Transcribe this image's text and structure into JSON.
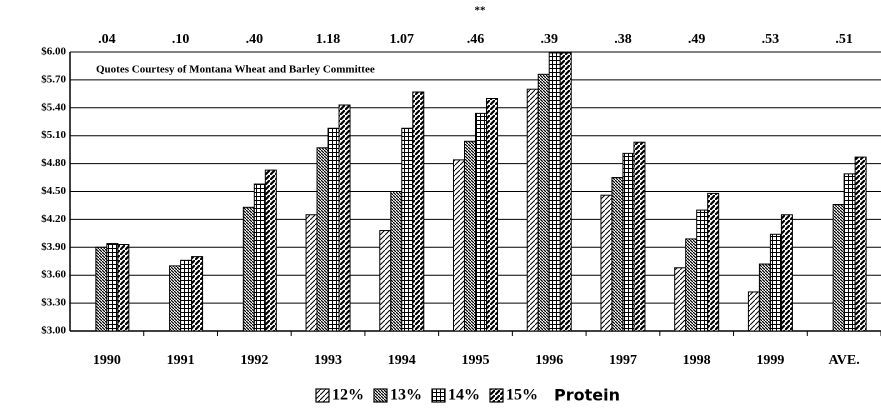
{
  "chart_data": {
    "type": "bar",
    "categories": [
      "1990",
      "1991",
      "1992",
      "1993",
      "1994",
      "1995",
      "1996",
      "1997",
      "1998",
      "1999",
      "AVE."
    ],
    "series": [
      {
        "name": "12%",
        "color": "#000000",
        "pattern": "diagonal",
        "values": [
          null,
          null,
          null,
          4.25,
          4.08,
          4.84,
          5.6,
          4.46,
          3.68,
          3.42,
          null
        ]
      },
      {
        "name": "13%",
        "color": "#000000",
        "pattern": "dense-diagonal",
        "values": [
          3.9,
          3.7,
          4.33,
          4.97,
          4.5,
          5.04,
          5.76,
          4.65,
          3.99,
          3.72,
          4.36
        ]
      },
      {
        "name": "14%",
        "color": "#000000",
        "pattern": "grid",
        "values": [
          3.94,
          3.76,
          4.58,
          5.18,
          5.18,
          5.34,
          5.99,
          4.91,
          4.3,
          4.04,
          4.69
        ]
      },
      {
        "name": "15%",
        "color": "#000000",
        "pattern": "thick-diagonal",
        "values": [
          3.93,
          3.8,
          4.73,
          5.43,
          5.57,
          5.5,
          5.99,
          5.03,
          4.48,
          4.25,
          4.87
        ]
      }
    ],
    "top_labels": [
      ".04",
      ".10",
      ".40",
      "1.18",
      "1.07",
      ".46",
      ".39",
      ".38",
      ".49",
      ".53",
      ".51"
    ],
    "top_note": "**",
    "annotation": "Quotes Courtesy of Montana Wheat and Barley Committee",
    "legend_suffix": "Protein",
    "ylim": [
      3,
      6
    ],
    "yticks": [
      {
        "value": 3,
        "label": "$3.00"
      },
      {
        "value": 3.3,
        "label": "$3.30"
      },
      {
        "value": 3.6,
        "label": "$3.60"
      },
      {
        "value": 3.9,
        "label": "$3.90"
      },
      {
        "value": 4.2,
        "label": "$4.20"
      },
      {
        "value": 4.5,
        "label": "$4.50"
      },
      {
        "value": 4.8,
        "label": "$4.80"
      },
      {
        "value": 5.1,
        "label": "$5.10"
      },
      {
        "value": 5.4,
        "label": "$5.40"
      },
      {
        "value": 5.7,
        "label": "$5.70"
      },
      {
        "value": 6,
        "label": "$6.00"
      }
    ],
    "grid": true
  }
}
